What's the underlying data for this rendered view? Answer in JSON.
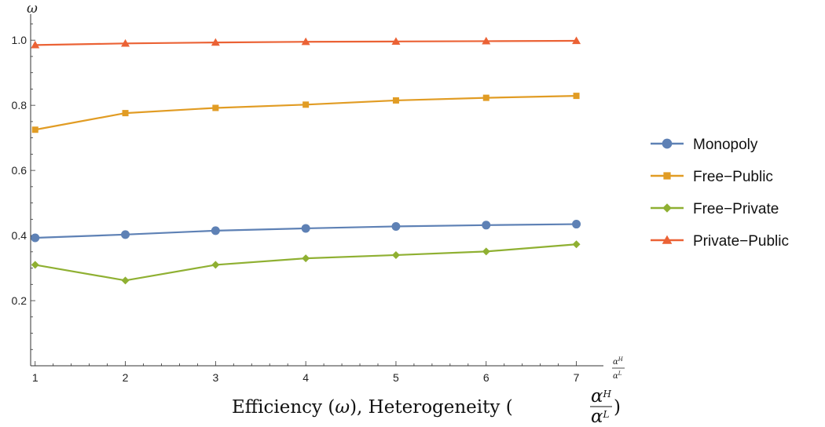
{
  "chart_data": {
    "type": "line",
    "title": "",
    "xlabel": "Efficiency (ω), Heterogeneity (αᴴ/αᴸ)",
    "xlabel_parts": {
      "prefix": "Efficiency (",
      "omega": "ω",
      "middle": "), Heterogeneity (",
      "num": "α",
      "num_sup": "H",
      "den": "α",
      "den_sup": "L",
      "suffix": ")"
    },
    "x_axis_end_label": {
      "num": "α",
      "num_sup": "H",
      "den": "α",
      "den_sup": "L"
    },
    "ylabel": "ω",
    "x": [
      1,
      2,
      3,
      4,
      5,
      6,
      7
    ],
    "xlim": [
      0.95,
      7.3
    ],
    "ylim": [
      0.0,
      1.08
    ],
    "x_ticks": [
      1,
      2,
      3,
      4,
      5,
      6,
      7
    ],
    "y_ticks": [
      0.2,
      0.4,
      0.6,
      0.8,
      1.0
    ],
    "y_tick_labels": [
      "0.2",
      "0.4",
      "0.6",
      "0.8",
      "1.0"
    ],
    "grid": false,
    "legend_position": "right",
    "series": [
      {
        "name": "Monopoly",
        "color": "#5E81B5",
        "marker": "circle",
        "values": [
          0.393,
          0.403,
          0.415,
          0.422,
          0.428,
          0.432,
          0.435
        ]
      },
      {
        "name": "Free−Public",
        "color": "#E19C24",
        "marker": "square",
        "values": [
          0.725,
          0.776,
          0.792,
          0.802,
          0.815,
          0.823,
          0.829
        ]
      },
      {
        "name": "Free−Private",
        "color": "#8FB032",
        "marker": "diamond",
        "values": [
          0.31,
          0.262,
          0.31,
          0.33,
          0.34,
          0.351,
          0.373
        ]
      },
      {
        "name": "Private−Public",
        "color": "#EB6235",
        "marker": "triangle",
        "values": [
          0.985,
          0.99,
          0.993,
          0.995,
          0.996,
          0.997,
          0.998
        ]
      }
    ]
  }
}
